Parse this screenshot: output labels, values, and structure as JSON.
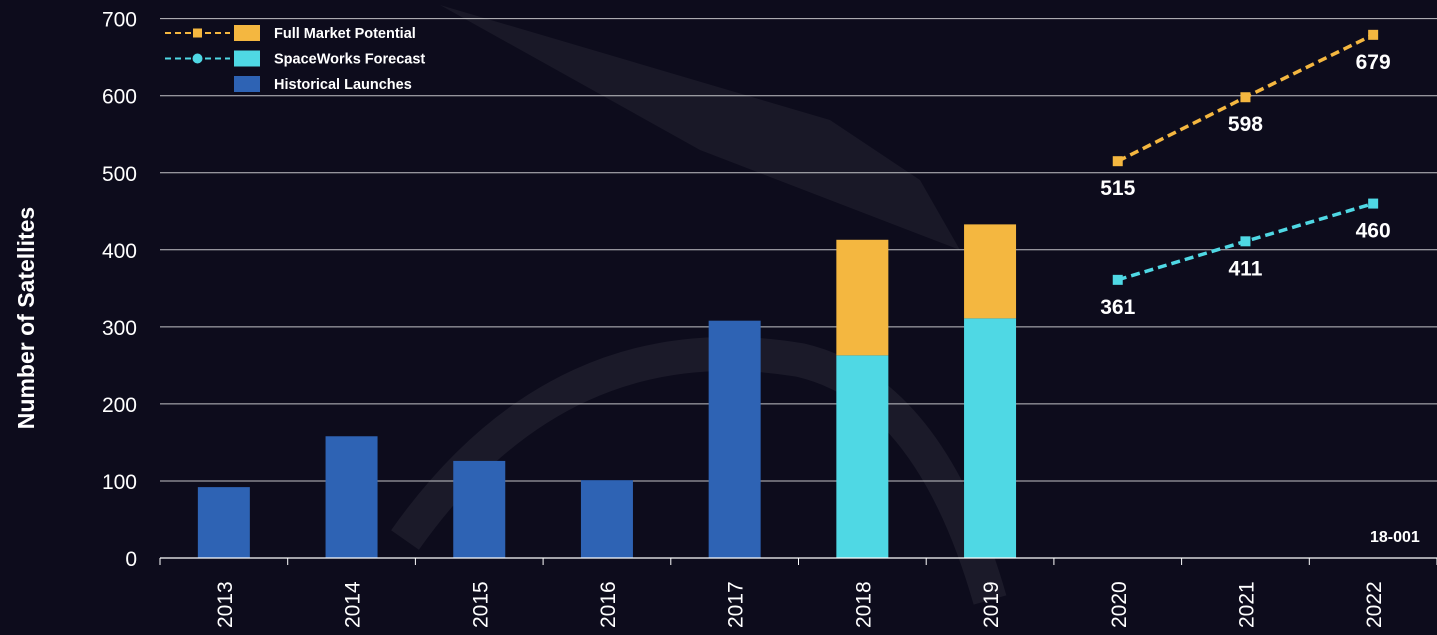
{
  "chart_data": {
    "type": "bar",
    "ylabel": "Number of Satellites",
    "xlabel": "",
    "ylim": [
      0,
      700
    ],
    "yticks": [
      0,
      100,
      200,
      300,
      400,
      500,
      600,
      700
    ],
    "grid": true,
    "legend_position": "top-left",
    "categories": [
      "2013",
      "2014",
      "2015",
      "2016",
      "2017",
      "2018",
      "2019",
      "2020",
      "2021",
      "2022"
    ],
    "series": [
      {
        "name": "Historical Launches",
        "kind": "bar",
        "color": "#2e63b4",
        "values": [
          92,
          158,
          126,
          101,
          308,
          null,
          null,
          null,
          null,
          null
        ]
      },
      {
        "name": "SpaceWorks Forecast",
        "kind": "stacked-bar",
        "color": "#4fd8e4",
        "values": [
          null,
          null,
          null,
          null,
          null,
          263,
          311,
          null,
          null,
          null
        ]
      },
      {
        "name": "Full Market Potential",
        "kind": "stacked-bar",
        "color": "#f4b740",
        "values": [
          null,
          null,
          null,
          null,
          null,
          150,
          122,
          null,
          null,
          null
        ]
      },
      {
        "name": "Full Market Potential",
        "kind": "line",
        "color": "#f4b740",
        "values": [
          null,
          null,
          null,
          null,
          null,
          null,
          null,
          515,
          598,
          679
        ],
        "labels": [
          "515",
          "598",
          "679"
        ]
      },
      {
        "name": "SpaceWorks Forecast",
        "kind": "line",
        "color": "#4fd8e4",
        "values": [
          null,
          null,
          null,
          null,
          null,
          null,
          null,
          361,
          411,
          460
        ],
        "labels": [
          "361",
          "411",
          "460"
        ]
      }
    ],
    "legend": [
      {
        "label": "Full Market Potential",
        "color": "#f4b740",
        "line_color": "#f4b740",
        "marker": "square"
      },
      {
        "label": "SpaceWorks Forecast",
        "color": "#4fd8e4",
        "line_color": "#4fd8e4",
        "marker": "circle"
      },
      {
        "label": "Historical Launches",
        "color": "#2e63b4",
        "line_color": null,
        "marker": null
      }
    ],
    "annotation": "18-001"
  }
}
